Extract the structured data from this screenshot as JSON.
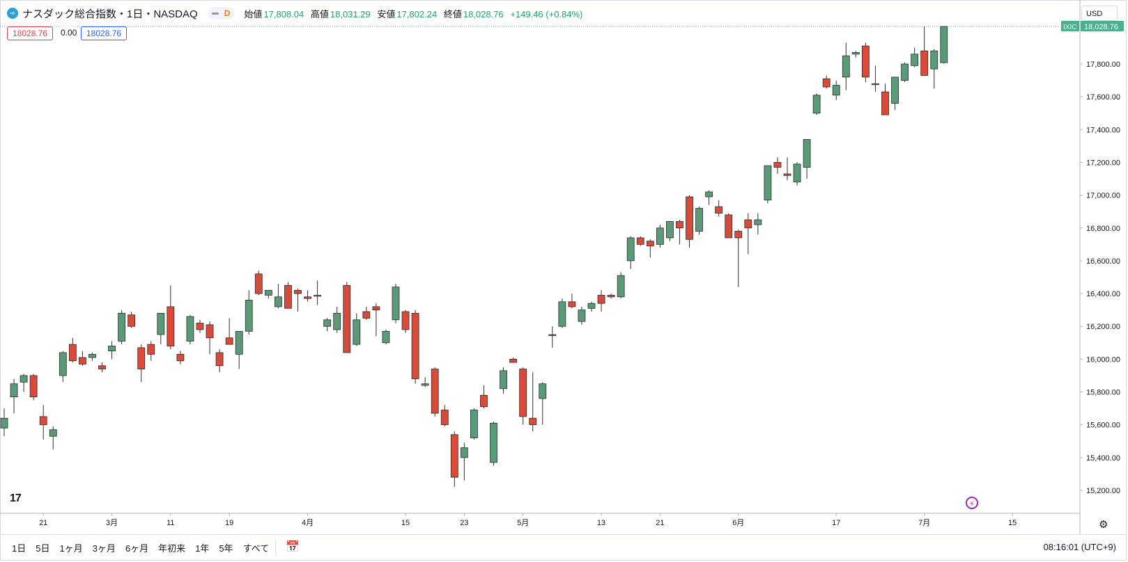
{
  "header": {
    "symbol_title": "ナスダック総合指数・1日・NASDAQ",
    "interval_badge": "D",
    "open_label": "始値",
    "open_value": "17,808.04",
    "high_label": "高値",
    "high_value": "18,031.29",
    "low_label": "安値",
    "low_value": "17,802.24",
    "close_label": "終値",
    "close_value": "18,028.76",
    "change": "+149.46 (+0.84%)"
  },
  "badges": {
    "value1": "18028.76",
    "value2": "0.00",
    "value3": "18028.76"
  },
  "currency": "USD",
  "price_tag": {
    "symbol": "IXIC",
    "price": "18,028.76"
  },
  "bottom": {
    "ranges": [
      "1日",
      "5日",
      "1ヶ月",
      "3ヶ月",
      "6ヶ月",
      "年初来",
      "1年",
      "5年",
      "すべて"
    ],
    "clock": "08:16:01 (UTC+9)"
  },
  "colors": {
    "up": "#5b9a78",
    "down": "#d94a38",
    "accent": "#22a06b",
    "grid_line": "#4caf8e"
  },
  "chart_data": {
    "type": "candlestick",
    "y_ticks": [
      "15,200.00",
      "15,400.00",
      "15,600.00",
      "15,800.00",
      "16,000.00",
      "16,200.00",
      "16,400.00",
      "16,600.00",
      "16,800.00",
      "17,000.00",
      "17,200.00",
      "17,400.00",
      "17,600.00",
      "17,800.00"
    ],
    "ylim": [
      15000,
      18050
    ],
    "x_ticks": [
      {
        "label": "21",
        "index": 4
      },
      {
        "label": "3月",
        "index": 11
      },
      {
        "label": "11",
        "index": 17
      },
      {
        "label": "19",
        "index": 23
      },
      {
        "label": "4月",
        "index": 31
      },
      {
        "label": "15",
        "index": 41
      },
      {
        "label": "23",
        "index": 47
      },
      {
        "label": "5月",
        "index": 53
      },
      {
        "label": "13",
        "index": 61
      },
      {
        "label": "21",
        "index": 67
      },
      {
        "label": "6月",
        "index": 75
      },
      {
        "label": "17",
        "index": 85
      },
      {
        "label": "7月",
        "index": 94
      },
      {
        "label": "15",
        "index": 103
      }
    ],
    "candles": [
      {
        "o": 15580,
        "h": 15700,
        "l": 15530,
        "c": 15640
      },
      {
        "o": 15770,
        "h": 15880,
        "l": 15670,
        "c": 15850
      },
      {
        "o": 15860,
        "h": 15910,
        "l": 15800,
        "c": 15900
      },
      {
        "o": 15900,
        "h": 15910,
        "l": 15750,
        "c": 15770
      },
      {
        "o": 15650,
        "h": 15720,
        "l": 15510,
        "c": 15600
      },
      {
        "o": 15530,
        "h": 15590,
        "l": 15450,
        "c": 15570
      },
      {
        "o": 15900,
        "h": 16050,
        "l": 15860,
        "c": 16040
      },
      {
        "o": 16090,
        "h": 16130,
        "l": 15980,
        "c": 15990
      },
      {
        "o": 16010,
        "h": 16050,
        "l": 15960,
        "c": 15970
      },
      {
        "o": 16010,
        "h": 16040,
        "l": 15990,
        "c": 16030
      },
      {
        "o": 15960,
        "h": 15980,
        "l": 15920,
        "c": 15940
      },
      {
        "o": 16050,
        "h": 16110,
        "l": 16000,
        "c": 16080
      },
      {
        "o": 16110,
        "h": 16300,
        "l": 16090,
        "c": 16280
      },
      {
        "o": 16270,
        "h": 16290,
        "l": 16190,
        "c": 16200
      },
      {
        "o": 16070,
        "h": 16090,
        "l": 15860,
        "c": 15940
      },
      {
        "o": 16090,
        "h": 16110,
        "l": 15990,
        "c": 16030
      },
      {
        "o": 16150,
        "h": 16280,
        "l": 16090,
        "c": 16280
      },
      {
        "o": 16320,
        "h": 16450,
        "l": 16060,
        "c": 16080
      },
      {
        "o": 16030,
        "h": 16050,
        "l": 15970,
        "c": 15990
      },
      {
        "o": 16110,
        "h": 16270,
        "l": 16090,
        "c": 16260
      },
      {
        "o": 16220,
        "h": 16240,
        "l": 16160,
        "c": 16180
      },
      {
        "o": 16210,
        "h": 16230,
        "l": 16030,
        "c": 16130
      },
      {
        "o": 16040,
        "h": 16060,
        "l": 15920,
        "c": 15960
      },
      {
        "o": 16130,
        "h": 16250,
        "l": 16090,
        "c": 16090
      },
      {
        "o": 16030,
        "h": 16170,
        "l": 15940,
        "c": 16170
      },
      {
        "o": 16170,
        "h": 16420,
        "l": 16150,
        "c": 16360
      },
      {
        "o": 16520,
        "h": 16540,
        "l": 16390,
        "c": 16400
      },
      {
        "o": 16390,
        "h": 16420,
        "l": 16370,
        "c": 16420
      },
      {
        "o": 16320,
        "h": 16460,
        "l": 16310,
        "c": 16380
      },
      {
        "o": 16450,
        "h": 16470,
        "l": 16310,
        "c": 16310
      },
      {
        "o": 16420,
        "h": 16430,
        "l": 16290,
        "c": 16400
      },
      {
        "o": 16380,
        "h": 16420,
        "l": 16350,
        "c": 16370
      },
      {
        "o": 16390,
        "h": 16480,
        "l": 16330,
        "c": 16390
      },
      {
        "o": 16200,
        "h": 16250,
        "l": 16170,
        "c": 16240
      },
      {
        "o": 16180,
        "h": 16320,
        "l": 16160,
        "c": 16280
      },
      {
        "o": 16450,
        "h": 16470,
        "l": 16040,
        "c": 16040
      },
      {
        "o": 16090,
        "h": 16280,
        "l": 16080,
        "c": 16240
      },
      {
        "o": 16290,
        "h": 16320,
        "l": 16240,
        "c": 16250
      },
      {
        "o": 16320,
        "h": 16340,
        "l": 16140,
        "c": 16300
      },
      {
        "o": 16100,
        "h": 16180,
        "l": 16090,
        "c": 16170
      },
      {
        "o": 16240,
        "h": 16460,
        "l": 16220,
        "c": 16440
      },
      {
        "o": 16290,
        "h": 16300,
        "l": 16160,
        "c": 16180
      },
      {
        "o": 16280,
        "h": 16300,
        "l": 15850,
        "c": 15880
      },
      {
        "o": 15840,
        "h": 15890,
        "l": 15830,
        "c": 15850
      },
      {
        "o": 15940,
        "h": 15950,
        "l": 15650,
        "c": 15670
      },
      {
        "o": 15690,
        "h": 15720,
        "l": 15590,
        "c": 15600
      },
      {
        "o": 15540,
        "h": 15560,
        "l": 15220,
        "c": 15280
      },
      {
        "o": 15400,
        "h": 15490,
        "l": 15260,
        "c": 15460
      },
      {
        "o": 15520,
        "h": 15700,
        "l": 15510,
        "c": 15690
      },
      {
        "o": 15780,
        "h": 15840,
        "l": 15700,
        "c": 15710
      },
      {
        "o": 15370,
        "h": 15620,
        "l": 15350,
        "c": 15610
      },
      {
        "o": 15820,
        "h": 15950,
        "l": 15790,
        "c": 15930
      },
      {
        "o": 16000,
        "h": 16010,
        "l": 15980,
        "c": 15980
      },
      {
        "o": 15940,
        "h": 15950,
        "l": 15600,
        "c": 15650
      },
      {
        "o": 15640,
        "h": 15920,
        "l": 15560,
        "c": 15600
      },
      {
        "o": 15760,
        "h": 15860,
        "l": 15600,
        "c": 15850
      },
      {
        "o": 16150,
        "h": 16200,
        "l": 16070,
        "c": 16150
      },
      {
        "o": 16200,
        "h": 16370,
        "l": 16190,
        "c": 16350
      },
      {
        "o": 16350,
        "h": 16400,
        "l": 16310,
        "c": 16320
      },
      {
        "o": 16230,
        "h": 16320,
        "l": 16210,
        "c": 16300
      },
      {
        "o": 16310,
        "h": 16350,
        "l": 16290,
        "c": 16340
      },
      {
        "o": 16390,
        "h": 16420,
        "l": 16290,
        "c": 16340
      },
      {
        "o": 16390,
        "h": 16400,
        "l": 16370,
        "c": 16380
      },
      {
        "o": 16380,
        "h": 16530,
        "l": 16370,
        "c": 16510
      },
      {
        "o": 16600,
        "h": 16750,
        "l": 16550,
        "c": 16740
      },
      {
        "o": 16740,
        "h": 16750,
        "l": 16690,
        "c": 16700
      },
      {
        "o": 16720,
        "h": 16730,
        "l": 16620,
        "c": 16690
      },
      {
        "o": 16700,
        "h": 16820,
        "l": 16680,
        "c": 16800
      },
      {
        "o": 16740,
        "h": 16840,
        "l": 16720,
        "c": 16840
      },
      {
        "o": 16840,
        "h": 16850,
        "l": 16700,
        "c": 16800
      },
      {
        "o": 16990,
        "h": 17000,
        "l": 16680,
        "c": 16730
      },
      {
        "o": 16780,
        "h": 16930,
        "l": 16760,
        "c": 16920
      },
      {
        "o": 16990,
        "h": 17030,
        "l": 16940,
        "c": 17020
      },
      {
        "o": 16930,
        "h": 16970,
        "l": 16870,
        "c": 16890
      },
      {
        "o": 16880,
        "h": 16890,
        "l": 16740,
        "c": 16740
      },
      {
        "o": 16780,
        "h": 16790,
        "l": 16440,
        "c": 16740
      },
      {
        "o": 16850,
        "h": 16890,
        "l": 16640,
        "c": 16800
      },
      {
        "o": 16820,
        "h": 16890,
        "l": 16760,
        "c": 16850
      },
      {
        "o": 16970,
        "h": 17180,
        "l": 16950,
        "c": 17180
      },
      {
        "o": 17200,
        "h": 17230,
        "l": 17130,
        "c": 17170
      },
      {
        "o": 17130,
        "h": 17230,
        "l": 17090,
        "c": 17120
      },
      {
        "o": 17080,
        "h": 17200,
        "l": 17060,
        "c": 17190
      },
      {
        "o": 17170,
        "h": 17340,
        "l": 17100,
        "c": 17340
      },
      {
        "o": 17500,
        "h": 17620,
        "l": 17490,
        "c": 17610
      },
      {
        "o": 17710,
        "h": 17730,
        "l": 17650,
        "c": 17660
      },
      {
        "o": 17610,
        "h": 17700,
        "l": 17580,
        "c": 17670
      },
      {
        "o": 17720,
        "h": 17930,
        "l": 17640,
        "c": 17850
      },
      {
        "o": 17860,
        "h": 17880,
        "l": 17840,
        "c": 17870
      },
      {
        "o": 17910,
        "h": 17930,
        "l": 17690,
        "c": 17720
      },
      {
        "o": 17680,
        "h": 17790,
        "l": 17630,
        "c": 17680
      },
      {
        "o": 17630,
        "h": 17680,
        "l": 17490,
        "c": 17490
      },
      {
        "o": 17560,
        "h": 17720,
        "l": 17520,
        "c": 17720
      },
      {
        "o": 17700,
        "h": 17810,
        "l": 17690,
        "c": 17800
      },
      {
        "o": 17790,
        "h": 17900,
        "l": 17780,
        "c": 17860
      },
      {
        "o": 17880,
        "h": 18030,
        "l": 17730,
        "c": 17730
      },
      {
        "o": 17770,
        "h": 17890,
        "l": 17650,
        "c": 17880
      },
      {
        "o": 17808,
        "h": 18031,
        "l": 17802,
        "c": 18029
      }
    ]
  }
}
